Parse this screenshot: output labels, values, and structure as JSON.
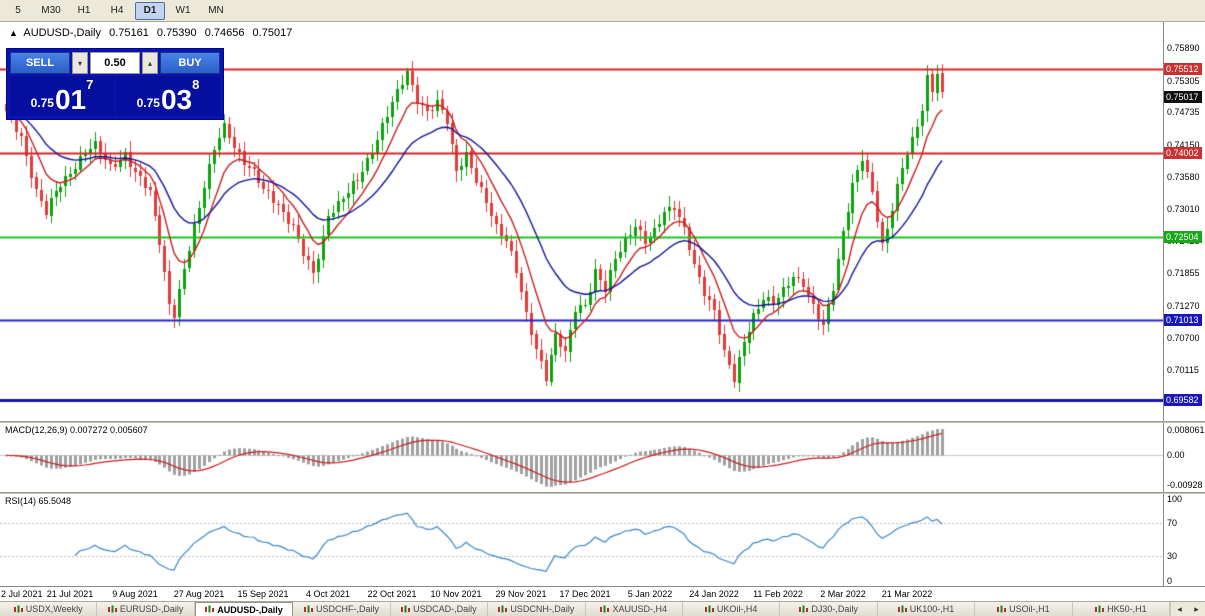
{
  "toolbar": {
    "timeframes": [
      {
        "label": "5",
        "active": false
      },
      {
        "label": "M30",
        "active": false
      },
      {
        "label": "H1",
        "active": false
      },
      {
        "label": "H4",
        "active": false
      },
      {
        "label": "D1",
        "active": true
      },
      {
        "label": "W1",
        "active": false
      },
      {
        "label": "MN",
        "active": false
      }
    ]
  },
  "chart_header": {
    "symbol": "AUDUSD-,Daily",
    "open": "0.75161",
    "high": "0.75390",
    "low": "0.74656",
    "close": "0.75017"
  },
  "trade_panel": {
    "sell_label": "SELL",
    "buy_label": "BUY",
    "volume": "0.50",
    "decrement_glyph": "▾",
    "increment_glyph": "▴",
    "bid": {
      "prefix": "0.75",
      "big": "01",
      "sup": "7"
    },
    "ask": {
      "prefix": "0.75",
      "big": "03",
      "sup": "8"
    }
  },
  "price_axis": {
    "entries": [
      {
        "text": "0.75890",
        "type": "tick"
      },
      {
        "text": "0.75512",
        "type": "badge",
        "bg": "#C83232"
      },
      {
        "text": "0.75305",
        "type": "tick"
      },
      {
        "text": "0.75017",
        "type": "badge",
        "bg": "#101010"
      },
      {
        "text": "0.74735",
        "type": "tick"
      },
      {
        "text": "0.74150",
        "type": "tick"
      },
      {
        "text": "0.74002",
        "type": "badge",
        "bg": "#C83232"
      },
      {
        "text": "0.73580",
        "type": "tick"
      },
      {
        "text": "0.73010",
        "type": "tick"
      },
      {
        "text": "0.72504",
        "type": "badge",
        "bg": "#18A818"
      },
      {
        "text": "0.72425",
        "type": "tick"
      },
      {
        "text": "0.71855",
        "type": "tick"
      },
      {
        "text": "0.71270",
        "type": "tick"
      },
      {
        "text": "0.71013",
        "type": "badge",
        "bg": "#1818B8"
      },
      {
        "text": "0.70700",
        "type": "tick"
      },
      {
        "text": "0.70115",
        "type": "tick"
      },
      {
        "text": "0.69582",
        "type": "badge",
        "bg": "#1818B8"
      }
    ]
  },
  "macd_panel": {
    "label": "MACD(12,26,9) 0.007272 0.005607",
    "ticks": [
      {
        "text": "0.008061",
        "value": 0.008061
      },
      {
        "text": "0.00",
        "value": 0
      },
      {
        "text": "-0.00928",
        "value": -0.00928
      }
    ]
  },
  "rsi_panel": {
    "label": "RSI(14) 65.5048",
    "ticks": [
      {
        "text": "100",
        "value": 100
      },
      {
        "text": "70",
        "value": 70
      },
      {
        "text": "30",
        "value": 30
      },
      {
        "text": "0",
        "value": 0
      }
    ]
  },
  "tab_bar": {
    "scroll_left": "◂",
    "scroll_right": "▸",
    "tabs": [
      {
        "label": "USDX,Weekly",
        "active": false
      },
      {
        "label": "EURUSD-,Daily",
        "active": false
      },
      {
        "label": "AUDUSD-,Daily",
        "active": true
      },
      {
        "label": "USDCHF-,Daily",
        "active": false
      },
      {
        "label": "USDCAD-,Daily",
        "active": false
      },
      {
        "label": "USDCNH-,Daily",
        "active": false
      },
      {
        "label": "XAUUSD-,H4",
        "active": false
      },
      {
        "label": "UKOil-,H4",
        "active": false
      },
      {
        "label": "DJ30-,Daily",
        "active": false
      },
      {
        "label": "UK100-,H1",
        "active": false
      },
      {
        "label": "USOil-,H1",
        "active": false
      },
      {
        "label": "HK50-,H1",
        "active": false
      }
    ]
  },
  "chart_data": {
    "type": "candlestick",
    "title": "AUDUSD-,Daily",
    "ohlc_display": {
      "open": 0.75161,
      "high": 0.7539,
      "low": 0.74656,
      "close": 0.75017
    },
    "x_labels": [
      "2 Jul 2021",
      "21 Jul 2021",
      "9 Aug 2021",
      "27 Aug 2021",
      "15 Sep 2021",
      "4 Oct 2021",
      "22 Oct 2021",
      "10 Nov 2021",
      "29 Nov 2021",
      "17 Dec 2021",
      "5 Jan 2022",
      "24 Jan 2022",
      "11 Feb 2022",
      "2 Mar 2022",
      "21 Mar 2022"
    ],
    "bars_per_label": 13,
    "num_candles": 190,
    "y_range": [
      0.6924,
      0.7632
    ],
    "y_ticks": [
      0.7589,
      0.75305,
      0.74735,
      0.7415,
      0.7358,
      0.7301,
      0.72425,
      0.71855,
      0.7127,
      0.707,
      0.70115
    ],
    "hlines": [
      {
        "price": 0.75512,
        "color": "#D42424",
        "width": 2
      },
      {
        "price": 0.74002,
        "color": "#D42424",
        "width": 2
      },
      {
        "price": 0.72504,
        "color": "#1FBF1F",
        "width": 2
      },
      {
        "price": 0.71013,
        "color": "#2424C8",
        "width": 2
      },
      {
        "price": 0.69582,
        "color": "#1414B4",
        "width": 3
      }
    ],
    "last_price": 0.75017,
    "candle_up_color": "#0FA00F",
    "candle_down_color": "#E03C3C",
    "moving_averages": [
      {
        "period": 8,
        "color": "#C81E1E"
      },
      {
        "period": 21,
        "color": "#14149B"
      }
    ],
    "price_waypoints": [
      [
        0,
        0.747
      ],
      [
        3,
        0.7428
      ],
      [
        6,
        0.7335
      ],
      [
        8,
        0.7292
      ],
      [
        10,
        0.733
      ],
      [
        13,
        0.7368
      ],
      [
        16,
        0.7402
      ],
      [
        18,
        0.7412
      ],
      [
        21,
        0.7378
      ],
      [
        24,
        0.7398
      ],
      [
        26,
        0.7362
      ],
      [
        29,
        0.7332
      ],
      [
        31,
        0.7245
      ],
      [
        33,
        0.7128
      ],
      [
        34,
        0.7108
      ],
      [
        36,
        0.719
      ],
      [
        38,
        0.727
      ],
      [
        40,
        0.7345
      ],
      [
        42,
        0.7408
      ],
      [
        44,
        0.7445
      ],
      [
        46,
        0.7412
      ],
      [
        48,
        0.7388
      ],
      [
        50,
        0.7368
      ],
      [
        52,
        0.7332
      ],
      [
        55,
        0.7308
      ],
      [
        58,
        0.727
      ],
      [
        60,
        0.7218
      ],
      [
        62,
        0.7182
      ],
      [
        64,
        0.725
      ],
      [
        65,
        0.7292
      ],
      [
        68,
        0.7318
      ],
      [
        71,
        0.7352
      ],
      [
        74,
        0.7408
      ],
      [
        77,
        0.7468
      ],
      [
        79,
        0.7508
      ],
      [
        81,
        0.7548
      ],
      [
        83,
        0.7498
      ],
      [
        85,
        0.7472
      ],
      [
        87,
        0.7488
      ],
      [
        89,
        0.7458
      ],
      [
        91,
        0.7372
      ],
      [
        93,
        0.7398
      ],
      [
        95,
        0.7348
      ],
      [
        97,
        0.7312
      ],
      [
        99,
        0.7272
      ],
      [
        101,
        0.7248
      ],
      [
        103,
        0.7188
      ],
      [
        105,
        0.7108
      ],
      [
        107,
        0.7052
      ],
      [
        109,
        0.7002
      ],
      [
        111,
        0.7072
      ],
      [
        113,
        0.7038
      ],
      [
        115,
        0.7122
      ],
      [
        117,
        0.7132
      ],
      [
        119,
        0.7188
      ],
      [
        121,
        0.7152
      ],
      [
        123,
        0.7212
      ],
      [
        125,
        0.7248
      ],
      [
        127,
        0.7272
      ],
      [
        129,
        0.7238
      ],
      [
        131,
        0.7258
      ],
      [
        133,
        0.7298
      ],
      [
        135,
        0.7308
      ],
      [
        137,
        0.7262
      ],
      [
        139,
        0.7195
      ],
      [
        141,
        0.7152
      ],
      [
        143,
        0.7122
      ],
      [
        145,
        0.7042
      ],
      [
        147,
        0.6992
      ],
      [
        149,
        0.7062
      ],
      [
        151,
        0.7112
      ],
      [
        153,
        0.7142
      ],
      [
        155,
        0.7128
      ],
      [
        157,
        0.7152
      ],
      [
        159,
        0.7182
      ],
      [
        161,
        0.7168
      ],
      [
        163,
        0.7122
      ],
      [
        165,
        0.7088
      ],
      [
        167,
        0.7162
      ],
      [
        169,
        0.7262
      ],
      [
        171,
        0.7342
      ],
      [
        173,
        0.7388
      ],
      [
        175,
        0.7332
      ],
      [
        177,
        0.7238
      ],
      [
        179,
        0.7302
      ],
      [
        181,
        0.7372
      ],
      [
        183,
        0.7422
      ],
      [
        185,
        0.7482
      ],
      [
        186,
        0.7538
      ],
      [
        187,
        0.7518
      ],
      [
        188,
        0.7542
      ],
      [
        189,
        0.7502
      ]
    ],
    "macd": {
      "fast": 12,
      "slow": 26,
      "signal": 9,
      "main_value": 0.007272,
      "signal_value": 0.005607,
      "y_range": [
        -0.0105,
        0.0092
      ],
      "histogram_color": "#A0A0A0",
      "signal_color": "#C81E1E"
    },
    "rsi": {
      "period": 14,
      "value": 65.5048,
      "color": "#3E86C8",
      "levels": [
        70,
        30
      ]
    }
  }
}
